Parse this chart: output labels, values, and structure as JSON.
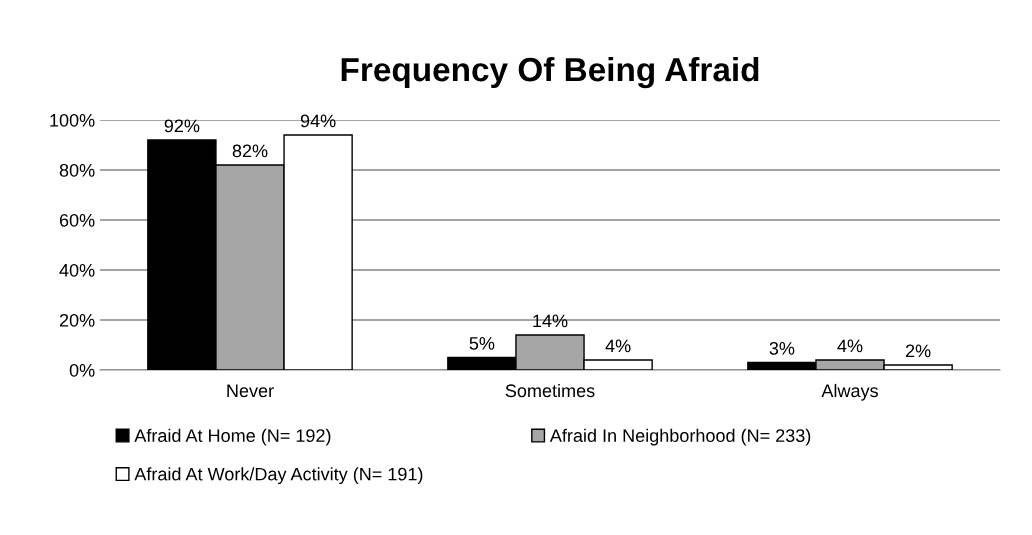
{
  "chart_data": {
    "type": "bar",
    "title": "Frequency Of Being Afraid",
    "categories": [
      "Never",
      "Sometimes",
      "Always"
    ],
    "series": [
      {
        "name": "Afraid At Home (N= 192)",
        "color": "#000000",
        "values": [
          92,
          5,
          3
        ],
        "value_labels": [
          "92%",
          "5%",
          "3%"
        ]
      },
      {
        "name": "Afraid In Neighborhood (N= 233)",
        "color": "#a6a6a6",
        "values": [
          82,
          14,
          4
        ],
        "value_labels": [
          "82%",
          "14%",
          "4%"
        ]
      },
      {
        "name": "Afraid At Work/Day Activity (N= 191)",
        "color": "#ffffff",
        "values": [
          94,
          4,
          2
        ],
        "value_labels": [
          "94%",
          "4%",
          "2%"
        ]
      }
    ],
    "ylim": [
      0,
      100
    ],
    "yticks": [
      {
        "value": 0,
        "label": "0%"
      },
      {
        "value": 20,
        "label": "20%"
      },
      {
        "value": 40,
        "label": "40%"
      },
      {
        "value": 60,
        "label": "60%"
      },
      {
        "value": 80,
        "label": "80%"
      },
      {
        "value": 100,
        "label": "100%"
      }
    ],
    "grid": "y",
    "legend": "bottom"
  }
}
